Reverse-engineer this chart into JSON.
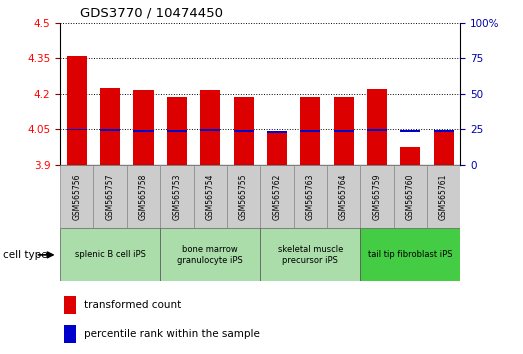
{
  "title": "GDS3770 / 10474450",
  "samples": [
    "GSM565756",
    "GSM565757",
    "GSM565758",
    "GSM565753",
    "GSM565754",
    "GSM565755",
    "GSM565762",
    "GSM565763",
    "GSM565764",
    "GSM565759",
    "GSM565760",
    "GSM565761"
  ],
  "transformed_count": [
    4.362,
    4.225,
    4.215,
    4.188,
    4.215,
    4.185,
    4.038,
    4.188,
    4.188,
    4.222,
    3.975,
    4.042
  ],
  "percentile_rank_values": [
    4.045,
    4.042,
    4.04,
    4.038,
    4.043,
    4.04,
    4.035,
    4.04,
    4.038,
    4.043,
    4.038,
    4.04
  ],
  "y_min": 3.9,
  "y_max": 4.5,
  "y_ticks": [
    3.9,
    4.05,
    4.2,
    4.35,
    4.5
  ],
  "y_tick_labels": [
    "3.9",
    "4.05",
    "4.2",
    "4.35",
    "4.5"
  ],
  "y2_ticks": [
    0,
    25,
    50,
    75,
    100
  ],
  "y2_tick_labels": [
    "0",
    "25",
    "50",
    "75",
    "100%"
  ],
  "bar_color": "#dd0000",
  "blue_color": "#0000cc",
  "cell_groups": [
    {
      "label": "splenic B cell iPS",
      "start": 0,
      "end": 2,
      "color": "#aaddaa"
    },
    {
      "label": "bone marrow\ngranulocyte iPS",
      "start": 3,
      "end": 5,
      "color": "#aaddaa"
    },
    {
      "label": "skeletal muscle\nprecursor iPS",
      "start": 6,
      "end": 8,
      "color": "#aaddaa"
    },
    {
      "label": "tail tip fibroblast iPS",
      "start": 9,
      "end": 11,
      "color": "#44cc44"
    }
  ],
  "sample_box_color": "#cccccc",
  "legend_transformed": "transformed count",
  "legend_percentile": "percentile rank within the sample",
  "cell_type_label": "cell type",
  "background_color": "#ffffff"
}
